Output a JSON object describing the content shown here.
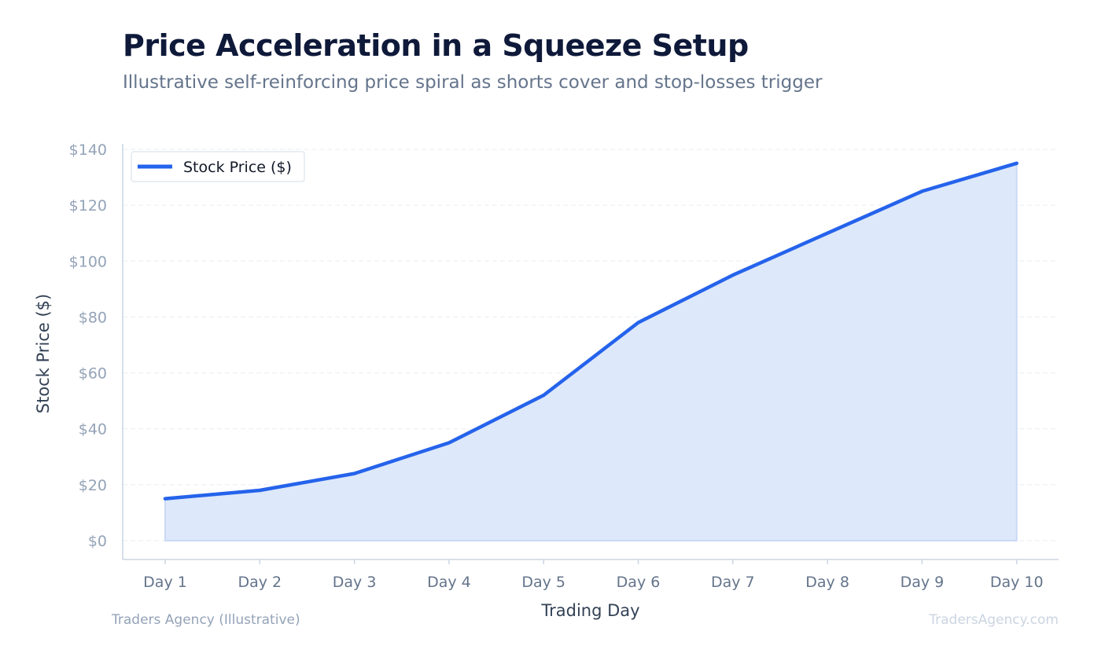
{
  "title": "Price Acceleration in a Squeeze Setup",
  "subtitle": "Illustrative self-reinforcing price spiral as shorts cover and stop-losses trigger",
  "footer_left": "Traders Agency (Illustrative)",
  "footer_right": "TradersAgency.com",
  "colors": {
    "line": "#2563eb",
    "fill": "#dce7fb",
    "grid": "#e8edf3",
    "axis": "#cbd5e1"
  },
  "chart_data": {
    "type": "area",
    "categories": [
      "Day 1",
      "Day 2",
      "Day 3",
      "Day 4",
      "Day 5",
      "Day 6",
      "Day 7",
      "Day 8",
      "Day 9",
      "Day 10"
    ],
    "series": [
      {
        "name": "Stock Price ($)",
        "values": [
          15,
          18,
          24,
          35,
          52,
          78,
          95,
          110,
          125,
          135
        ]
      }
    ],
    "xlabel": "Trading Day",
    "ylabel": "Stock Price ($)",
    "ylim": [
      0,
      140
    ],
    "yticks": [
      0,
      20,
      40,
      60,
      80,
      100,
      120,
      140
    ],
    "ytick_labels": [
      "$0",
      "$20",
      "$40",
      "$60",
      "$80",
      "$100",
      "$120",
      "$140"
    ],
    "grid": true,
    "legend": "top-left"
  }
}
